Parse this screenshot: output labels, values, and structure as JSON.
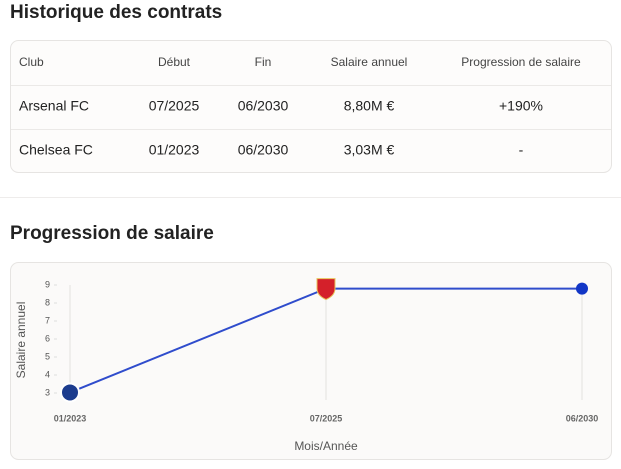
{
  "table_section": {
    "title": "Historique des contrats",
    "headers": [
      "Club",
      "Début",
      "Fin",
      "Salaire annuel",
      "Progression de salaire"
    ],
    "rows": [
      [
        "Arsenal FC",
        "07/2025",
        "06/2030",
        "8,80M €",
        "+190%"
      ],
      [
        "Chelsea FC",
        "01/2023",
        "06/2030",
        "3,03M €",
        "-"
      ]
    ]
  },
  "chart_section": {
    "title": "Progression de salaire"
  },
  "chart_data": {
    "type": "line",
    "x_label": "Mois/Année",
    "y_label": "Salaire annuel",
    "categories": [
      "01/2023",
      "07/2025",
      "06/2030"
    ],
    "values": [
      3.03,
      8.8,
      8.8
    ],
    "color": "#2f4ccc",
    "ylim": [
      3,
      9
    ],
    "yticks": [
      3,
      4,
      5,
      6,
      7,
      8,
      9
    ],
    "grid": true
  }
}
